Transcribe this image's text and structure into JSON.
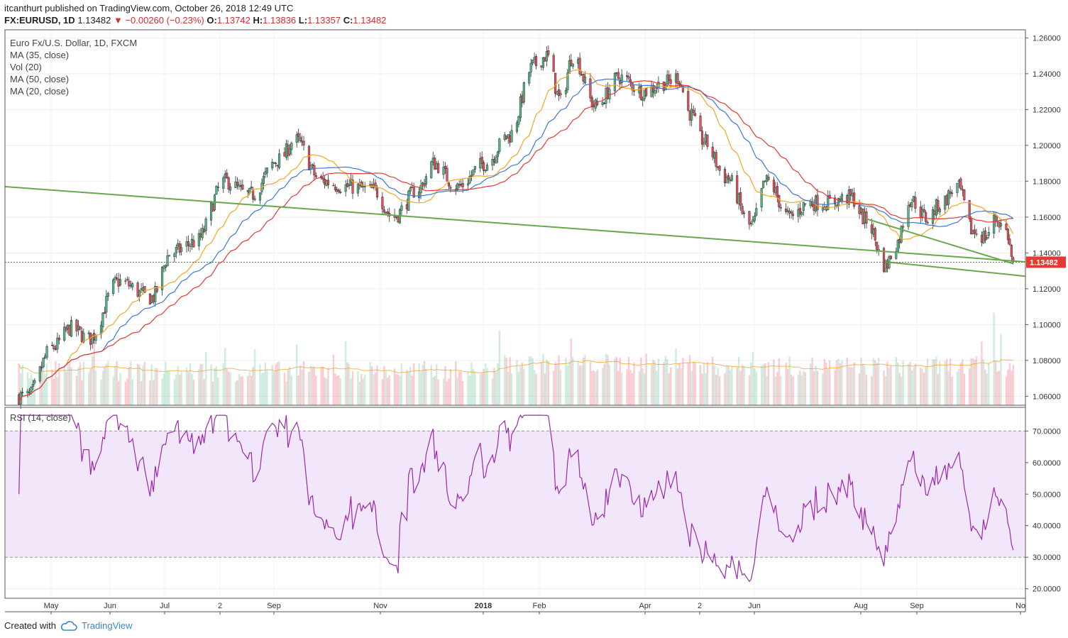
{
  "header": {
    "author": "itcanthurt",
    "published": "published on TradingView.com, October 26, 2018 12:49 UTC",
    "symbol": "FX:EURUSD, 1D",
    "last": "1.13482",
    "change": "−0.00260 (−0.23%)",
    "o_label": "O:",
    "o_value": "1.13742",
    "h_label": "H:",
    "h_value": "1.13836",
    "l_label": "L:",
    "l_value": "1.13357",
    "c_label": "C:",
    "c_value": "1.13482"
  },
  "legend": {
    "title": "Euro Fx/U.S. Dollar, 1D, FXCM",
    "ma35": "MA (35, close)",
    "vol": "Vol (20)",
    "ma50": "MA (50, close)",
    "ma20": "MA (20, close)"
  },
  "rsi_label": "RSI (14, close)",
  "footer": {
    "created": "Created with",
    "brand": "TradingView"
  },
  "colors": {
    "up": "#53b987",
    "down": "#eb4d5c",
    "ma20": "#f5a623",
    "ma35": "#3c78d8",
    "ma50": "#e53935",
    "trend": "#6aa84f",
    "rsi": "#9c27b0",
    "rsi_band": "#f2e6fb",
    "price_tag": "#e53935",
    "tv": "#3d85c6"
  },
  "chart_data": [
    {
      "type": "candlestick",
      "title": "Euro Fx/U.S. Dollar, 1D, FXCM",
      "y_ticks": [
        "1.26000",
        "1.24000",
        "1.22000",
        "1.20000",
        "1.18000",
        "1.16000",
        "1.14000",
        "1.12000",
        "1.10000",
        "1.08000",
        "1.06000"
      ],
      "ylim": [
        1.055,
        1.2645
      ],
      "x_ticks": [
        "May",
        "Jun",
        "Jul",
        "2",
        "Sep",
        "Nov",
        "2018",
        "Feb",
        "Apr",
        "2",
        "Jun",
        "Aug",
        "Sep",
        "No"
      ],
      "last_price_label": "1.13482",
      "price_anchors": [
        [
          "2017-04-10",
          1.06
        ],
        [
          "2017-04-24",
          1.087
        ],
        [
          "2017-05-05",
          1.098
        ],
        [
          "2017-05-15",
          1.092
        ],
        [
          "2017-06-01",
          1.124
        ],
        [
          "2017-06-20",
          1.115
        ],
        [
          "2017-07-01",
          1.14
        ],
        [
          "2017-07-15",
          1.146
        ],
        [
          "2017-08-01",
          1.18
        ],
        [
          "2017-08-15",
          1.172
        ],
        [
          "2017-09-01",
          1.192
        ],
        [
          "2017-09-10",
          1.203
        ],
        [
          "2017-09-25",
          1.18
        ],
        [
          "2017-10-10",
          1.177
        ],
        [
          "2017-10-25",
          1.175
        ],
        [
          "2017-11-05",
          1.16
        ],
        [
          "2017-11-20",
          1.176
        ],
        [
          "2017-11-28",
          1.19
        ],
        [
          "2017-12-12",
          1.177
        ],
        [
          "2017-12-28",
          1.19
        ],
        [
          "2018-01-10",
          1.205
        ],
        [
          "2018-01-25",
          1.245
        ],
        [
          "2018-02-01",
          1.25
        ],
        [
          "2018-02-09",
          1.225
        ],
        [
          "2018-02-16",
          1.25
        ],
        [
          "2018-03-01",
          1.222
        ],
        [
          "2018-03-15",
          1.238
        ],
        [
          "2018-03-28",
          1.23
        ],
        [
          "2018-04-10",
          1.235
        ],
        [
          "2018-04-17",
          1.238
        ],
        [
          "2018-04-24",
          1.218
        ],
        [
          "2018-05-01",
          1.203
        ],
        [
          "2018-05-15",
          1.182
        ],
        [
          "2018-05-29",
          1.155
        ],
        [
          "2018-06-07",
          1.18
        ],
        [
          "2018-06-20",
          1.16
        ],
        [
          "2018-07-01",
          1.168
        ],
        [
          "2018-07-12",
          1.168
        ],
        [
          "2018-07-25",
          1.171
        ],
        [
          "2018-08-03",
          1.158
        ],
        [
          "2018-08-14",
          1.133
        ],
        [
          "2018-08-20",
          1.145
        ],
        [
          "2018-08-28",
          1.17
        ],
        [
          "2018-09-07",
          1.159
        ],
        [
          "2018-09-14",
          1.167
        ],
        [
          "2018-09-24",
          1.177
        ],
        [
          "2018-10-03",
          1.152
        ],
        [
          "2018-10-10",
          1.149
        ],
        [
          "2018-10-16",
          1.159
        ],
        [
          "2018-10-22",
          1.152
        ],
        [
          "2018-10-26",
          1.135
        ]
      ],
      "trendlines": [
        {
          "name": "upper",
          "from": [
            "2017-03-28",
            1.177
          ],
          "to": [
            "2018-11-02",
            1.135
          ]
        },
        {
          "name": "lower",
          "from": [
            "2018-08-03",
            1.159
          ],
          "to": [
            "2018-10-26",
            1.134
          ]
        },
        {
          "name": "channel",
          "from": [
            "2018-08-14",
            1.135
          ],
          "to": [
            "2018-11-02",
            1.127
          ]
        }
      ],
      "indicators": [
        "MA (35, close)",
        "MA (50, close)",
        "MA (20, close)",
        "Vol (20)"
      ]
    },
    {
      "type": "line",
      "title": "RSI (14, close)",
      "y_ticks": [
        "70.0000",
        "60.0000",
        "50.0000",
        "40.0000",
        "30.0000",
        "20.0000"
      ],
      "ylim": [
        17,
        77.5
      ],
      "bands": [
        30,
        70
      ],
      "min_value": 20,
      "max_value": 75
    }
  ]
}
